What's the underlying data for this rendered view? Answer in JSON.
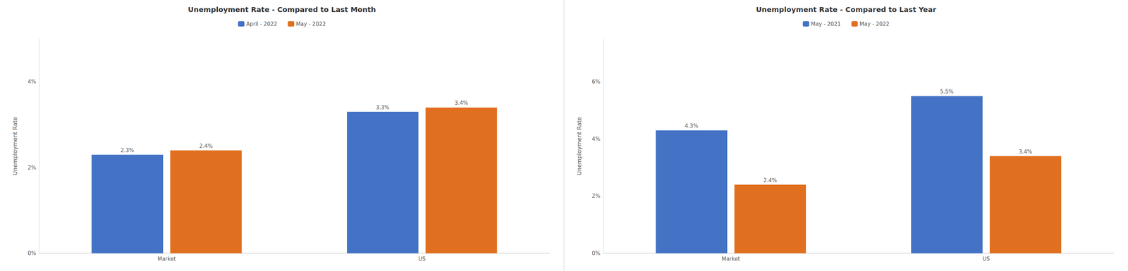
{
  "chart_data": [
    {
      "type": "bar",
      "title": "Unemployment Rate - Compared to Last Month",
      "ylabel": "Unemployment Rate",
      "categories": [
        "Market",
        "US"
      ],
      "series": [
        {
          "name": "April - 2022",
          "color": "#4472C4",
          "values": [
            0.023,
            0.033
          ],
          "value_labels": [
            "2.3%",
            "3.3%"
          ]
        },
        {
          "name": "May - 2022",
          "color": "#E07020",
          "values": [
            0.024,
            0.034
          ],
          "value_labels": [
            "2.4%",
            "3.4%"
          ]
        }
      ],
      "ylim": [
        0,
        0.05
      ],
      "yticks": [
        {
          "value": 0,
          "label": "0%"
        },
        {
          "value": 0.02,
          "label": "2%"
        },
        {
          "value": 0.04,
          "label": "4%"
        }
      ],
      "grid": false,
      "legend": "top",
      "data_labels": true
    },
    {
      "type": "bar",
      "title": "Unemployment Rate - Compared to Last Year",
      "ylabel": "Unemployment Rate",
      "categories": [
        "Market",
        "US"
      ],
      "series": [
        {
          "name": "May - 2021",
          "color": "#4472C4",
          "values": [
            0.043,
            0.055
          ],
          "value_labels": [
            "4.3%",
            "5.5%"
          ]
        },
        {
          "name": "May - 2022",
          "color": "#E07020",
          "values": [
            0.024,
            0.034
          ],
          "value_labels": [
            "2.4%",
            "3.4%"
          ]
        }
      ],
      "ylim": [
        0,
        0.075
      ],
      "yticks": [
        {
          "value": 0,
          "label": "0%"
        },
        {
          "value": 0.02,
          "label": "2%"
        },
        {
          "value": 0.04,
          "label": "4%"
        },
        {
          "value": 0.06,
          "label": "6%"
        }
      ],
      "grid": false,
      "legend": "top",
      "data_labels": true
    }
  ]
}
